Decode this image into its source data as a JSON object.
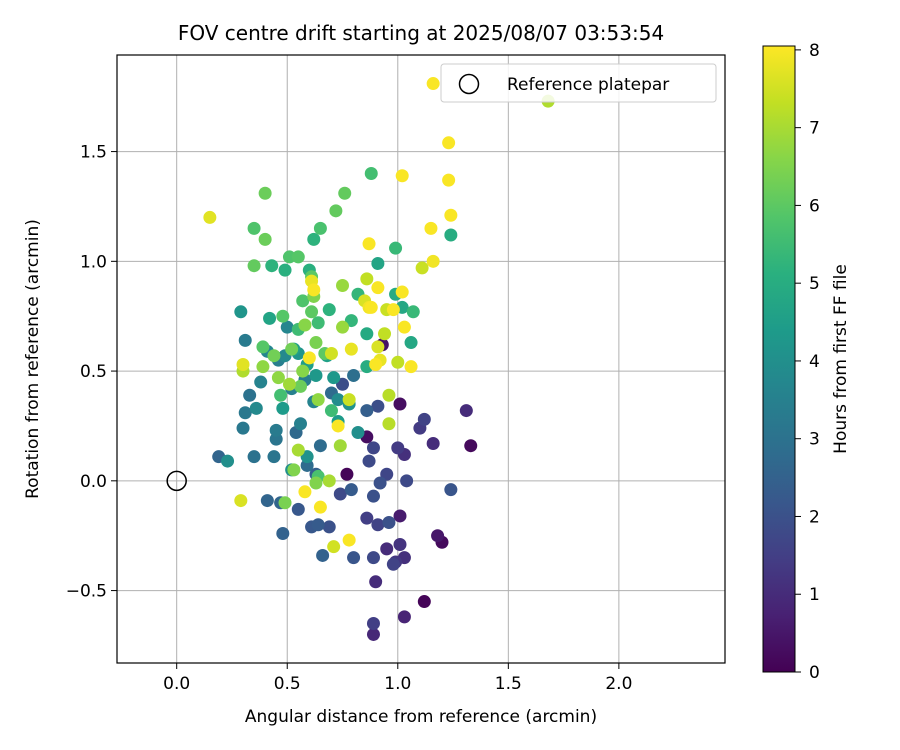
{
  "chart_data": {
    "type": "scatter",
    "title": "FOV centre drift starting at 2025/08/07 03:53:54",
    "xlabel": "Angular distance from reference (arcmin)",
    "ylabel": "Rotation from reference (arcmin)",
    "colorbar_label": "Hours from first FF file",
    "colormap": "viridis",
    "xlim": [
      -0.27,
      2.48
    ],
    "ylim": [
      -0.83,
      1.94
    ],
    "clim": [
      0,
      8.05
    ],
    "x_ticks": [
      "0.0",
      "0.5",
      "1.0",
      "1.5",
      "2.0"
    ],
    "y_ticks": [
      "−0.5",
      "0.0",
      "0.5",
      "1.0",
      "1.5"
    ],
    "colorbar_ticks": [
      "0",
      "1",
      "2",
      "3",
      "4",
      "5",
      "6",
      "7",
      "8"
    ],
    "grid": true,
    "legend_position": "top-right",
    "legend": [
      {
        "label": "Reference platepar",
        "marker": "open-circle"
      }
    ],
    "reference_point": {
      "x": 0.0,
      "y": 0.0
    },
    "points": [
      {
        "x": 0.77,
        "y": 0.03,
        "h": 0.1
      },
      {
        "x": 1.12,
        "y": -0.55,
        "h": 0.1
      },
      {
        "x": 1.2,
        "y": -0.28,
        "h": 0.2
      },
      {
        "x": 1.33,
        "y": 0.16,
        "h": 0.2
      },
      {
        "x": 1.01,
        "y": 0.35,
        "h": 0.3
      },
      {
        "x": 0.86,
        "y": 0.2,
        "h": 0.3
      },
      {
        "x": 0.93,
        "y": 0.62,
        "h": 0.4
      },
      {
        "x": 1.18,
        "y": -0.25,
        "h": 0.5
      },
      {
        "x": 1.01,
        "y": -0.16,
        "h": 0.6
      },
      {
        "x": 1.03,
        "y": -0.62,
        "h": 0.8
      },
      {
        "x": 0.89,
        "y": -0.7,
        "h": 0.9
      },
      {
        "x": 0.9,
        "y": -0.46,
        "h": 1.0
      },
      {
        "x": 0.95,
        "y": -0.31,
        "h": 1.0
      },
      {
        "x": 1.16,
        "y": 0.17,
        "h": 1.0
      },
      {
        "x": 1.31,
        "y": 0.32,
        "h": 1.0
      },
      {
        "x": 1.03,
        "y": -0.35,
        "h": 1.1
      },
      {
        "x": 1.03,
        "y": 0.12,
        "h": 1.1
      },
      {
        "x": 1.01,
        "y": -0.29,
        "h": 1.2
      },
      {
        "x": 0.99,
        "y": -0.37,
        "h": 1.3
      },
      {
        "x": 1.0,
        "y": 0.15,
        "h": 1.4
      },
      {
        "x": 1.1,
        "y": 0.24,
        "h": 1.4
      },
      {
        "x": 0.89,
        "y": -0.65,
        "h": 1.5
      },
      {
        "x": 0.86,
        "y": -0.17,
        "h": 1.5
      },
      {
        "x": 0.91,
        "y": -0.2,
        "h": 1.6
      },
      {
        "x": 0.98,
        "y": -0.38,
        "h": 1.6
      },
      {
        "x": 1.12,
        "y": 0.28,
        "h": 1.6
      },
      {
        "x": 0.95,
        "y": 0.03,
        "h": 1.7
      },
      {
        "x": 0.89,
        "y": 0.15,
        "h": 1.7
      },
      {
        "x": 0.87,
        "y": 0.09,
        "h": 1.8
      },
      {
        "x": 0.74,
        "y": -0.06,
        "h": 1.8
      },
      {
        "x": 0.89,
        "y": -0.35,
        "h": 1.8
      },
      {
        "x": 1.04,
        "y": 0.0,
        "h": 1.8
      },
      {
        "x": 0.91,
        "y": 0.34,
        "h": 1.9
      },
      {
        "x": 0.75,
        "y": 0.44,
        "h": 1.9
      },
      {
        "x": 0.89,
        "y": -0.07,
        "h": 2.0
      },
      {
        "x": 0.96,
        "y": -0.19,
        "h": 2.0
      },
      {
        "x": 0.92,
        "y": -0.01,
        "h": 2.0
      },
      {
        "x": 0.69,
        "y": -0.21,
        "h": 2.0
      },
      {
        "x": 0.8,
        "y": -0.35,
        "h": 2.1
      },
      {
        "x": 1.24,
        "y": -0.04,
        "h": 2.1
      },
      {
        "x": 0.55,
        "y": -0.13,
        "h": 2.2
      },
      {
        "x": 0.61,
        "y": -0.21,
        "h": 2.2
      },
      {
        "x": 0.64,
        "y": -0.2,
        "h": 2.3
      },
      {
        "x": 0.79,
        "y": -0.04,
        "h": 2.3
      },
      {
        "x": 0.63,
        "y": 0.03,
        "h": 2.4
      },
      {
        "x": 0.86,
        "y": 0.32,
        "h": 2.4
      },
      {
        "x": 0.66,
        "y": -0.34,
        "h": 2.5
      },
      {
        "x": 0.48,
        "y": -0.24,
        "h": 2.5
      },
      {
        "x": 0.41,
        "y": -0.09,
        "h": 2.6
      },
      {
        "x": 0.47,
        "y": -0.1,
        "h": 2.6
      },
      {
        "x": 0.19,
        "y": 0.11,
        "h": 2.6
      },
      {
        "x": 0.54,
        "y": 0.22,
        "h": 2.7
      },
      {
        "x": 0.59,
        "y": 0.07,
        "h": 2.8
      },
      {
        "x": 0.65,
        "y": 0.16,
        "h": 2.8
      },
      {
        "x": 0.7,
        "y": 0.4,
        "h": 2.8
      },
      {
        "x": 0.8,
        "y": 0.48,
        "h": 2.9
      },
      {
        "x": 0.33,
        "y": 0.39,
        "h": 3.0
      },
      {
        "x": 0.35,
        "y": 0.11,
        "h": 3.0
      },
      {
        "x": 0.44,
        "y": 0.11,
        "h": 3.1
      },
      {
        "x": 0.45,
        "y": 0.19,
        "h": 3.1
      },
      {
        "x": 0.31,
        "y": 0.31,
        "h": 3.2
      },
      {
        "x": 0.3,
        "y": 0.24,
        "h": 3.2
      },
      {
        "x": 0.45,
        "y": 0.23,
        "h": 3.3
      },
      {
        "x": 0.31,
        "y": 0.64,
        "h": 3.3
      },
      {
        "x": 0.58,
        "y": 0.46,
        "h": 3.4
      },
      {
        "x": 0.46,
        "y": 0.55,
        "h": 3.4
      },
      {
        "x": 0.52,
        "y": 0.42,
        "h": 3.5
      },
      {
        "x": 0.56,
        "y": 0.26,
        "h": 3.5
      },
      {
        "x": 0.62,
        "y": 0.36,
        "h": 3.6
      },
      {
        "x": 0.38,
        "y": 0.45,
        "h": 3.6
      },
      {
        "x": 0.5,
        "y": 0.7,
        "h": 3.7
      },
      {
        "x": 0.41,
        "y": 0.59,
        "h": 3.7
      },
      {
        "x": 0.36,
        "y": 0.33,
        "h": 3.8
      },
      {
        "x": 0.49,
        "y": 0.57,
        "h": 3.8
      },
      {
        "x": 0.73,
        "y": 0.37,
        "h": 3.9
      },
      {
        "x": 0.23,
        "y": 0.09,
        "h": 4.0
      },
      {
        "x": 0.52,
        "y": 0.05,
        "h": 4.0
      },
      {
        "x": 0.82,
        "y": 0.22,
        "h": 4.0
      },
      {
        "x": 0.78,
        "y": 0.35,
        "h": 4.1
      },
      {
        "x": 0.59,
        "y": 0.11,
        "h": 4.1
      },
      {
        "x": 0.29,
        "y": 0.77,
        "h": 4.2
      },
      {
        "x": 0.55,
        "y": 0.58,
        "h": 4.2
      },
      {
        "x": 0.63,
        "y": 0.48,
        "h": 4.3
      },
      {
        "x": 0.71,
        "y": 0.47,
        "h": 4.3
      },
      {
        "x": 0.73,
        "y": 0.27,
        "h": 4.4
      },
      {
        "x": 0.48,
        "y": 0.33,
        "h": 4.4
      },
      {
        "x": 0.59,
        "y": 0.53,
        "h": 4.5
      },
      {
        "x": 0.68,
        "y": 0.57,
        "h": 4.6
      },
      {
        "x": 0.53,
        "y": 0.6,
        "h": 4.6
      },
      {
        "x": 0.42,
        "y": 0.74,
        "h": 4.7
      },
      {
        "x": 0.91,
        "y": 0.99,
        "h": 4.7
      },
      {
        "x": 1.06,
        "y": 0.63,
        "h": 4.8
      },
      {
        "x": 1.02,
        "y": 0.79,
        "h": 4.8
      },
      {
        "x": 0.86,
        "y": 0.67,
        "h": 4.9
      },
      {
        "x": 0.99,
        "y": 0.85,
        "h": 4.9
      },
      {
        "x": 0.86,
        "y": 0.52,
        "h": 5.0
      },
      {
        "x": 1.24,
        "y": 1.12,
        "h": 5.0
      },
      {
        "x": 0.49,
        "y": 0.96,
        "h": 5.1
      },
      {
        "x": 0.6,
        "y": 0.96,
        "h": 5.1
      },
      {
        "x": 0.43,
        "y": 0.98,
        "h": 5.2
      },
      {
        "x": 0.62,
        "y": 1.1,
        "h": 5.2
      },
      {
        "x": 0.69,
        "y": 0.78,
        "h": 5.2
      },
      {
        "x": 0.79,
        "y": 0.73,
        "h": 5.3
      },
      {
        "x": 0.82,
        "y": 0.85,
        "h": 5.3
      },
      {
        "x": 1.07,
        "y": 0.77,
        "h": 5.4
      },
      {
        "x": 0.99,
        "y": 1.06,
        "h": 5.4
      },
      {
        "x": 0.7,
        "y": 0.32,
        "h": 5.5
      },
      {
        "x": 0.64,
        "y": 0.72,
        "h": 5.5
      },
      {
        "x": 0.55,
        "y": 0.69,
        "h": 5.5
      },
      {
        "x": 0.47,
        "y": 0.39,
        "h": 5.6
      },
      {
        "x": 0.88,
        "y": 1.4,
        "h": 5.6
      },
      {
        "x": 0.64,
        "y": 0.02,
        "h": 5.7
      },
      {
        "x": 0.65,
        "y": 1.15,
        "h": 5.7
      },
      {
        "x": 0.51,
        "y": 1.02,
        "h": 5.8
      },
      {
        "x": 0.57,
        "y": 0.82,
        "h": 5.8
      },
      {
        "x": 0.35,
        "y": 1.15,
        "h": 5.8
      },
      {
        "x": 0.39,
        "y": 0.61,
        "h": 5.9
      },
      {
        "x": 0.48,
        "y": 0.75,
        "h": 5.9
      },
      {
        "x": 0.55,
        "y": 1.02,
        "h": 5.9
      },
      {
        "x": 0.61,
        "y": 0.77,
        "h": 6.0
      },
      {
        "x": 0.61,
        "y": 0.93,
        "h": 6.0
      },
      {
        "x": 0.67,
        "y": 0.58,
        "h": 6.0
      },
      {
        "x": 0.76,
        "y": 1.31,
        "h": 6.1
      },
      {
        "x": 0.72,
        "y": 1.23,
        "h": 6.1
      },
      {
        "x": 0.35,
        "y": 0.98,
        "h": 6.1
      },
      {
        "x": 0.4,
        "y": 1.31,
        "h": 6.2
      },
      {
        "x": 0.4,
        "y": 1.1,
        "h": 6.2
      },
      {
        "x": 0.56,
        "y": 0.43,
        "h": 6.2
      },
      {
        "x": 0.44,
        "y": 0.57,
        "h": 6.3
      },
      {
        "x": 0.52,
        "y": 0.6,
        "h": 6.3
      },
      {
        "x": 0.63,
        "y": 0.63,
        "h": 6.4
      },
      {
        "x": 0.49,
        "y": -0.1,
        "h": 6.4
      },
      {
        "x": 0.63,
        "y": -0.01,
        "h": 6.5
      },
      {
        "x": 0.53,
        "y": 0.05,
        "h": 6.5
      },
      {
        "x": 0.62,
        "y": 0.84,
        "h": 6.5
      },
      {
        "x": 0.58,
        "y": 0.71,
        "h": 6.6
      },
      {
        "x": 0.57,
        "y": 0.5,
        "h": 6.6
      },
      {
        "x": 0.39,
        "y": 0.52,
        "h": 6.7
      },
      {
        "x": 0.46,
        "y": 0.47,
        "h": 6.7
      },
      {
        "x": 0.64,
        "y": 0.37,
        "h": 6.7
      },
      {
        "x": 0.75,
        "y": 0.89,
        "h": 6.8
      },
      {
        "x": 0.75,
        "y": 0.7,
        "h": 6.8
      },
      {
        "x": 0.51,
        "y": 0.44,
        "h": 6.9
      },
      {
        "x": 0.74,
        "y": 0.16,
        "h": 6.9
      },
      {
        "x": 0.69,
        "y": 0.0,
        "h": 7.0
      },
      {
        "x": 0.55,
        "y": 0.14,
        "h": 7.0
      },
      {
        "x": 0.3,
        "y": 0.5,
        "h": 7.1
      },
      {
        "x": 1.68,
        "y": 1.73,
        "h": 7.1
      },
      {
        "x": 0.96,
        "y": 0.39,
        "h": 7.2
      },
      {
        "x": 0.96,
        "y": 0.26,
        "h": 7.2
      },
      {
        "x": 0.86,
        "y": 0.92,
        "h": 7.3
      },
      {
        "x": 0.94,
        "y": 0.67,
        "h": 7.3
      },
      {
        "x": 1.0,
        "y": 0.54,
        "h": 7.3
      },
      {
        "x": 0.95,
        "y": 0.78,
        "h": 7.4
      },
      {
        "x": 0.78,
        "y": 0.37,
        "h": 7.4
      },
      {
        "x": 1.11,
        "y": 0.97,
        "h": 7.4
      },
      {
        "x": 0.71,
        "y": -0.3,
        "h": 7.5
      },
      {
        "x": 0.7,
        "y": 0.58,
        "h": 7.5
      },
      {
        "x": 0.85,
        "y": 0.82,
        "h": 7.6
      },
      {
        "x": 0.29,
        "y": -0.09,
        "h": 7.6
      },
      {
        "x": 0.91,
        "y": 0.61,
        "h": 7.6
      },
      {
        "x": 0.15,
        "y": 1.2,
        "h": 7.7
      },
      {
        "x": 0.3,
        "y": 0.53,
        "h": 7.7
      },
      {
        "x": 0.61,
        "y": 0.91,
        "h": 7.8
      },
      {
        "x": 0.79,
        "y": 0.6,
        "h": 7.8
      },
      {
        "x": 0.92,
        "y": 0.55,
        "h": 7.8
      },
      {
        "x": 0.87,
        "y": 0.79,
        "h": 7.9
      },
      {
        "x": 1.16,
        "y": 1.0,
        "h": 7.9
      },
      {
        "x": 1.15,
        "y": 1.15,
        "h": 8.0
      },
      {
        "x": 1.23,
        "y": 1.37,
        "h": 8.0
      },
      {
        "x": 1.24,
        "y": 1.21,
        "h": 8.0
      },
      {
        "x": 1.02,
        "y": 1.39,
        "h": 8.0
      },
      {
        "x": 1.23,
        "y": 1.54,
        "h": 8.0
      },
      {
        "x": 1.16,
        "y": 1.81,
        "h": 8.0
      },
      {
        "x": 0.87,
        "y": 1.08,
        "h": 8.0
      },
      {
        "x": 1.02,
        "y": 0.86,
        "h": 8.0
      },
      {
        "x": 0.98,
        "y": 0.78,
        "h": 8.0
      },
      {
        "x": 1.03,
        "y": 0.7,
        "h": 8.0
      },
      {
        "x": 1.06,
        "y": 0.52,
        "h": 8.0
      },
      {
        "x": 0.58,
        "y": -0.05,
        "h": 8.0
      },
      {
        "x": 0.65,
        "y": -0.12,
        "h": 8.0
      },
      {
        "x": 0.73,
        "y": 0.25,
        "h": 8.0
      },
      {
        "x": 0.6,
        "y": 0.56,
        "h": 8.0
      },
      {
        "x": 0.62,
        "y": 0.87,
        "h": 8.0
      },
      {
        "x": 0.88,
        "y": 0.79,
        "h": 8.0
      },
      {
        "x": 0.9,
        "y": 0.53,
        "h": 8.0
      },
      {
        "x": 0.78,
        "y": -0.27,
        "h": 8.0
      },
      {
        "x": 0.91,
        "y": 0.88,
        "h": 8.0
      }
    ]
  }
}
